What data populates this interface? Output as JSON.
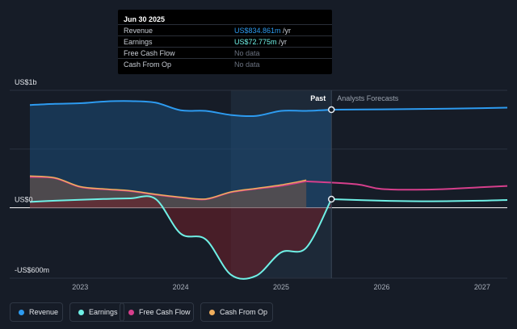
{
  "tooltip": {
    "date": "Jun 30 2025",
    "rows": [
      {
        "label": "Revenue",
        "value": "US$834.861m",
        "unit": " /yr",
        "color": "#2d9bf0"
      },
      {
        "label": "Earnings",
        "value": "US$72.775m",
        "unit": " /yr",
        "color": "#6ff0e6"
      },
      {
        "label": "Free Cash Flow",
        "value": "No data",
        "unit": "",
        "color": "#6b7280"
      },
      {
        "label": "Cash From Op",
        "value": "No data",
        "unit": "",
        "color": "#6b7280"
      }
    ]
  },
  "legend": [
    {
      "label": "Revenue",
      "color": "#2d9bf0"
    },
    {
      "label": "Earnings",
      "color": "#6ff0e6"
    },
    {
      "label": "Free Cash Flow",
      "color": "#d63f8c"
    },
    {
      "label": "Cash From Op",
      "color": "#f0ae5d"
    }
  ],
  "chart_data": {
    "type": "line",
    "y_tick_labels": [
      "US$1b",
      "US$0",
      "-US$600m"
    ],
    "y_ticks": [
      1000,
      0,
      -600
    ],
    "ylim": [
      -600,
      1000
    ],
    "x_tick_labels": [
      "2023",
      "2024",
      "2025",
      "2026",
      "2027"
    ],
    "x_ticks": [
      2023,
      2024,
      2025,
      2026,
      2027
    ],
    "xlim": [
      2022.5,
      2027.25
    ],
    "past_label": "Past",
    "forecast_label": "Analysts Forecasts",
    "past_end": 2025.5,
    "highlight_start": 2024.5,
    "series": [
      {
        "name": "Revenue",
        "color": "#2d9bf0",
        "x": [
          2022.5,
          2022.75,
          2023.0,
          2023.25,
          2023.5,
          2023.75,
          2024.0,
          2024.25,
          2024.5,
          2024.75,
          2025.0,
          2025.25,
          2025.5
        ],
        "y": [
          875,
          885,
          890,
          905,
          908,
          895,
          830,
          825,
          790,
          782,
          825,
          825,
          835
        ]
      },
      {
        "name": "Earnings",
        "color": "#6ff0e6",
        "x": [
          2022.5,
          2022.75,
          2023.0,
          2023.25,
          2023.5,
          2023.75,
          2024.0,
          2024.25,
          2024.5,
          2024.75,
          2025.0,
          2025.25,
          2025.5
        ],
        "y": [
          50,
          60,
          68,
          75,
          80,
          75,
          -220,
          -270,
          -570,
          -580,
          -380,
          -340,
          73
        ]
      },
      {
        "name": "Free Cash Flow",
        "color": "#d63f8c",
        "x": [
          2022.5,
          2022.75,
          2023.0,
          2023.25,
          2023.5,
          2023.75,
          2024.0,
          2024.25,
          2024.5,
          2024.75,
          2025.0,
          2025.25
        ],
        "y": [
          260,
          250,
          175,
          155,
          140,
          110,
          85,
          70,
          130,
          160,
          185,
          225
        ]
      },
      {
        "name": "Cash From Op",
        "color": "#f0ae5d",
        "x": [
          2022.5,
          2022.75,
          2023.0,
          2023.25,
          2023.5,
          2023.75,
          2024.0,
          2024.25,
          2024.5,
          2024.75,
          2025.0,
          2025.25
        ],
        "y": [
          270,
          255,
          180,
          160,
          145,
          115,
          90,
          75,
          135,
          165,
          195,
          235
        ]
      }
    ],
    "forecast_series": [
      {
        "name": "Revenue",
        "color": "#2d9bf0",
        "x": [
          2025.5,
          2026.0,
          2026.5,
          2027.0,
          2027.25
        ],
        "y": [
          835,
          838,
          842,
          848,
          852
        ]
      },
      {
        "name": "Earnings",
        "color": "#6ff0e6",
        "x": [
          2025.5,
          2026.0,
          2026.5,
          2027.0,
          2027.25
        ],
        "y": [
          73,
          60,
          55,
          60,
          66
        ]
      },
      {
        "name": "Free Cash Flow",
        "color": "#d63f8c",
        "x": [
          2025.25,
          2025.75,
          2026.0,
          2026.5,
          2027.0,
          2027.25
        ],
        "y": [
          225,
          200,
          160,
          155,
          175,
          185
        ]
      }
    ]
  }
}
